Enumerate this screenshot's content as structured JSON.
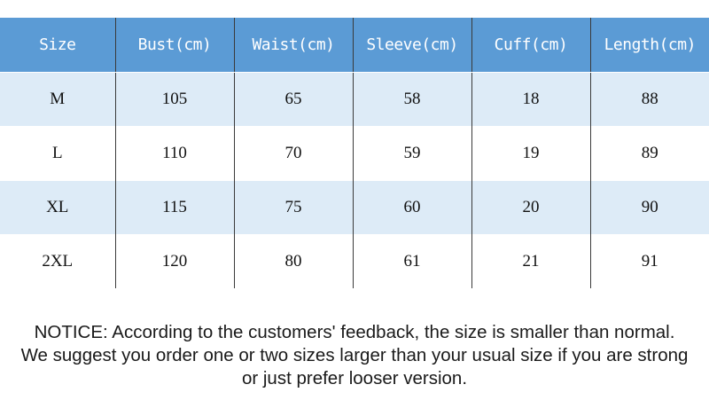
{
  "table": {
    "headers": [
      "Size",
      "Bust(cm)",
      "Waist(cm)",
      "Sleeve(cm)",
      "Cuff(cm)",
      "Length(cm)"
    ],
    "rows": [
      [
        "M",
        "105",
        "65",
        "58",
        "18",
        "88"
      ],
      [
        "L",
        "110",
        "70",
        "59",
        "19",
        "89"
      ],
      [
        "XL",
        "115",
        "75",
        "60",
        "20",
        "90"
      ],
      [
        "2XL",
        "120",
        "80",
        "61",
        "21",
        "91"
      ]
    ],
    "colors": {
      "header_bg": "#5b9bd5",
      "header_text": "#ffffff",
      "row_alt_bg": "#ddebf7",
      "row_bg": "#ffffff"
    }
  },
  "notice": {
    "line1": "NOTICE: According to the customers' feedback, the size is smaller than normal.",
    "line2": "We suggest you order one or two sizes larger than your usual size if you are strong",
    "line3": "or just prefer looser version."
  }
}
